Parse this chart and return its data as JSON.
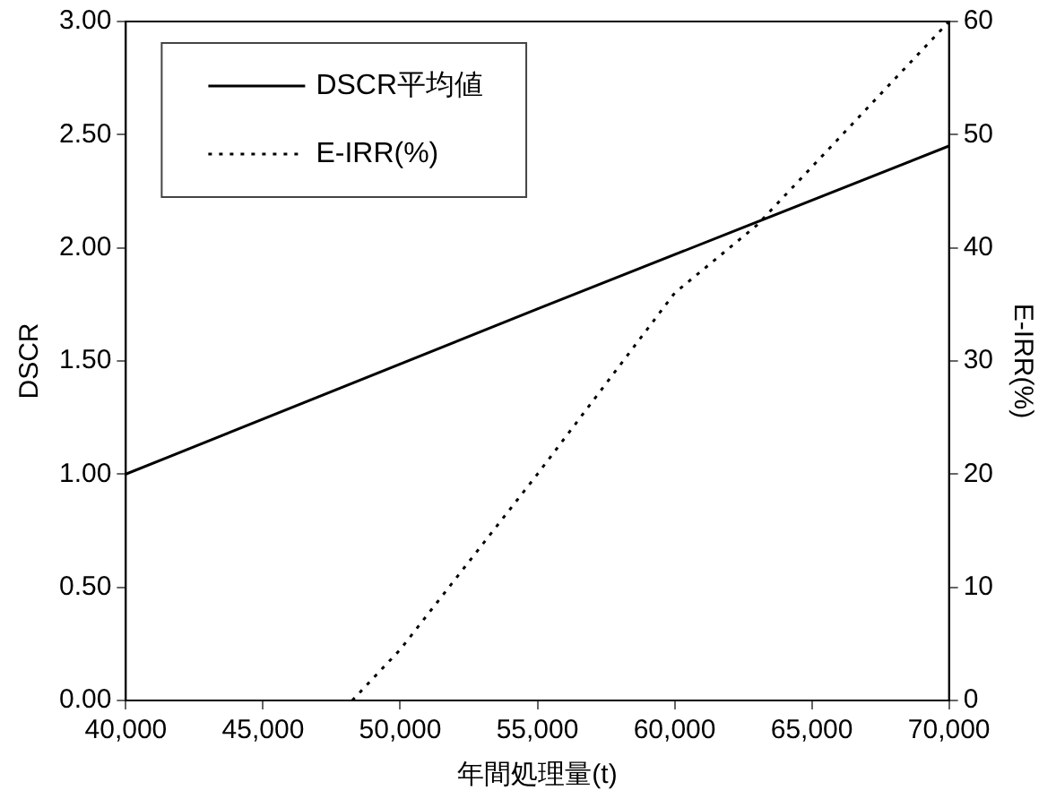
{
  "chart_data": {
    "type": "line",
    "xlabel": "年間処理量(t)",
    "ylabel": "DSCR",
    "y2label": "E-IRR(%)",
    "xlim": [
      40000,
      70000
    ],
    "xticks": [
      {
        "value": 40000,
        "label": "40,000"
      },
      {
        "value": 45000,
        "label": "45,000"
      },
      {
        "value": 50000,
        "label": "50,000"
      },
      {
        "value": 55000,
        "label": "55,000"
      },
      {
        "value": 60000,
        "label": "60,000"
      },
      {
        "value": 65000,
        "label": "65,000"
      },
      {
        "value": 70000,
        "label": "70,000"
      }
    ],
    "ylim": [
      0,
      3
    ],
    "yticks": [
      {
        "value": 0,
        "label": "0.00"
      },
      {
        "value": 0.5,
        "label": "0.50"
      },
      {
        "value": 1,
        "label": "1.00"
      },
      {
        "value": 1.5,
        "label": "1.50"
      },
      {
        "value": 2,
        "label": "2.00"
      },
      {
        "value": 2.5,
        "label": "2.50"
      },
      {
        "value": 3,
        "label": "3.00"
      }
    ],
    "y2lim": [
      0,
      60
    ],
    "y2ticks": [
      0,
      10,
      20,
      30,
      40,
      50,
      60
    ],
    "grid": false,
    "legend": "top left",
    "marker": "none",
    "series": [
      {
        "name": "DSCR平均値",
        "color": "#000000",
        "x": [
          40000,
          55000,
          70000
        ],
        "values": [
          1.0,
          1.73,
          2.45
        ],
        "line_style": "solid"
      },
      {
        "name": "E-IRR(%)",
        "color": "#000000",
        "axis": "y2",
        "x": [
          48250,
          50000,
          55000,
          60000,
          63000,
          70000
        ],
        "values": [
          0,
          4.5,
          20,
          36,
          42,
          60
        ],
        "line_style": "dotted"
      }
    ]
  }
}
